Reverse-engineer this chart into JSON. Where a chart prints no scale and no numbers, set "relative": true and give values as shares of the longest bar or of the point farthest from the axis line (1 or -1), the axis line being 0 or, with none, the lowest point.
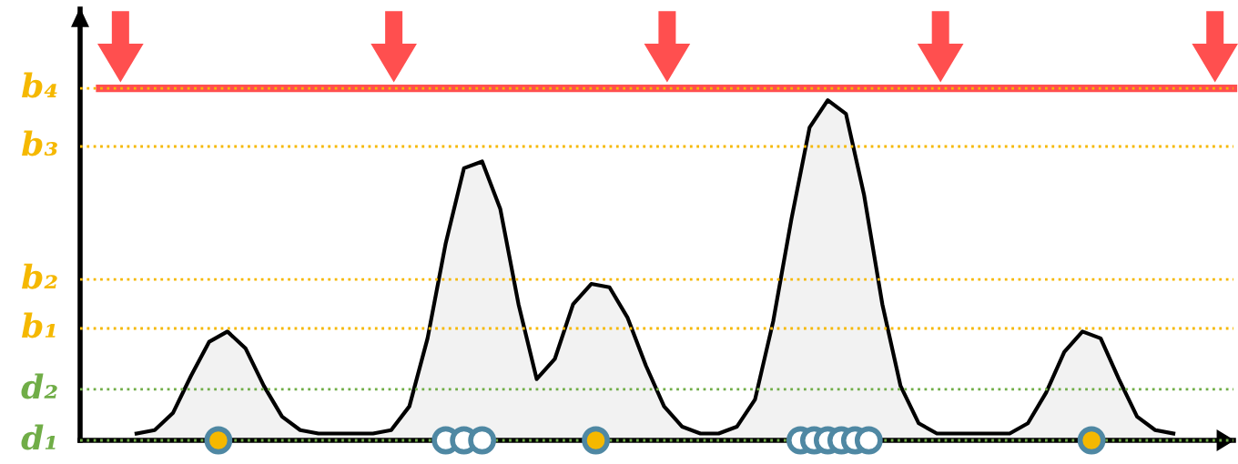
{
  "chart_data": {
    "type": "area",
    "relative": true,
    "tick_labels": false,
    "categories": [
      null,
      null,
      null,
      null,
      null,
      null,
      null,
      null,
      null,
      null,
      null,
      null,
      null,
      null,
      null,
      null,
      null,
      null,
      null,
      null,
      null,
      null,
      null,
      null,
      null,
      null,
      null,
      null,
      null,
      null,
      null,
      null,
      null,
      null,
      null,
      null,
      null,
      null,
      null,
      null,
      null,
      null,
      null,
      null,
      null,
      null,
      null,
      null,
      null,
      null,
      null,
      null,
      null,
      null,
      null,
      null,
      null,
      null
    ],
    "series": [
      {
        "color": "#000000",
        "line_style": "solid",
        "values": [
          0.02,
          0.03,
          0.08,
          0.19,
          0.29,
          0.32,
          0.27,
          0.16,
          0.07,
          0.03,
          0.02,
          0.02,
          0.02,
          0.02,
          0.03,
          0.1,
          0.3,
          0.58,
          0.8,
          0.82,
          0.68,
          0.4,
          0.18,
          0.24,
          0.4,
          0.46,
          0.45,
          0.36,
          0.22,
          0.1,
          0.04,
          0.02,
          0.02,
          0.04,
          0.12,
          0.35,
          0.65,
          0.92,
          1.0,
          0.96,
          0.72,
          0.4,
          0.16,
          0.05,
          0.02,
          0.02,
          0.02,
          0.02,
          0.02,
          0.05,
          0.14,
          0.26,
          0.32,
          0.3,
          0.18,
          0.07,
          0.03,
          0.02
        ]
      }
    ],
    "ref_lines": [
      {
        "axis": "y",
        "value": 1.035,
        "label": "b₄",
        "color": "#f5b800",
        "line_style": "dotted"
      },
      {
        "axis": "y",
        "value": 1.035,
        "color": "#ff4f4f",
        "line_style": "solid"
      },
      {
        "axis": "y",
        "value": 0.864,
        "label": "b₃",
        "color": "#f5b800",
        "line_style": "dotted"
      },
      {
        "axis": "y",
        "value": 0.473,
        "label": "b₂",
        "color": "#f5b800",
        "line_style": "dotted"
      },
      {
        "axis": "y",
        "value": 0.329,
        "label": "b₁",
        "color": "#f5b800",
        "line_style": "dotted"
      },
      {
        "axis": "y",
        "value": 0.15,
        "label": "d₂",
        "color": "#70ad47",
        "line_style": "dotted"
      },
      {
        "axis": "y",
        "value": 0.0,
        "label": "d₁",
        "color": "#70ad47",
        "line_style": "dotted"
      }
    ]
  }
}
